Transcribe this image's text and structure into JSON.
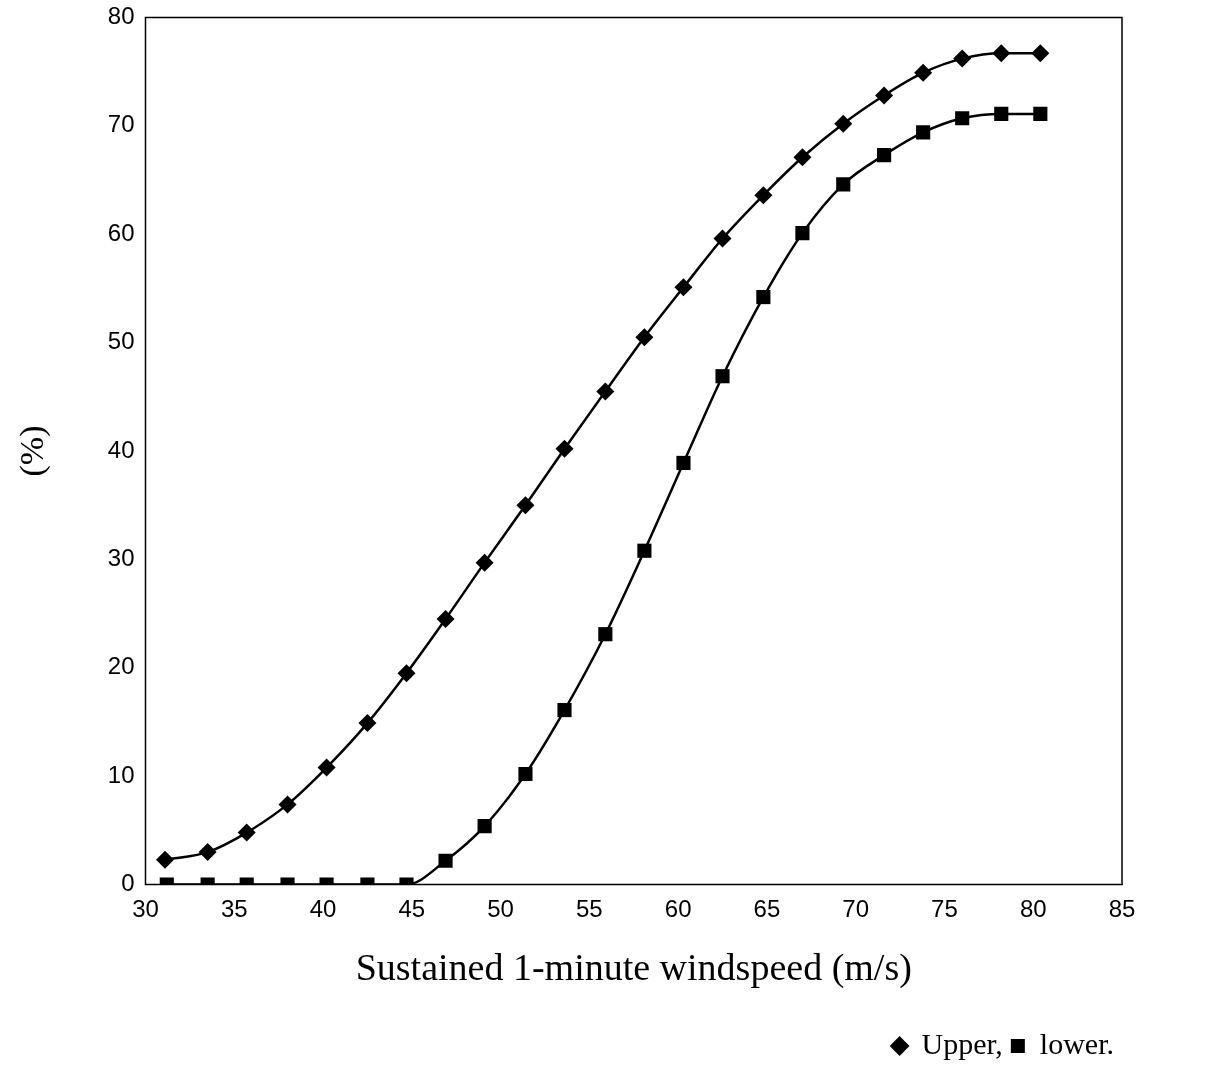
{
  "chart_data": {
    "type": "line",
    "xlabel": "Sustained 1-minute windspeed (m/s)",
    "ylabel": "(%)",
    "xlim": [
      30,
      85
    ],
    "xticks": [
      30,
      35,
      40,
      45,
      50,
      55,
      60,
      65,
      70,
      75,
      80,
      85
    ],
    "ylim": [
      0,
      80
    ],
    "yticks": [
      0,
      10,
      20,
      30,
      40,
      50,
      60,
      70,
      80
    ],
    "legend": "bottom right",
    "line_style": "solid",
    "series": [
      {
        "name": "Upper,",
        "color": "#000000",
        "marker": "diamond",
        "x": [
          31.1,
          33.5,
          35.7,
          38.0,
          40.2,
          42.5,
          44.7,
          46.9,
          49.1,
          51.4,
          53.6,
          55.9,
          58.1,
          60.3,
          62.5,
          64.8,
          67.0,
          69.3,
          71.6,
          73.8,
          76.0,
          78.2,
          80.4
        ],
        "values": [
          2.3,
          3.0,
          4.8,
          7.4,
          10.8,
          14.9,
          19.5,
          24.5,
          29.7,
          35.0,
          40.2,
          45.5,
          50.5,
          55.1,
          59.6,
          63.6,
          67.1,
          70.2,
          72.8,
          74.9,
          76.2,
          76.7,
          76.7
        ]
      },
      {
        "name": "lower.",
        "color": "#000000",
        "marker": "square",
        "x": [
          31.2,
          33.5,
          35.7,
          38.0,
          40.2,
          42.5,
          44.7,
          46.9,
          49.1,
          51.4,
          53.6,
          55.9,
          58.1,
          60.3,
          62.5,
          64.8,
          67.0,
          69.3,
          71.6,
          73.8,
          76.0,
          78.2,
          80.4
        ],
        "values": [
          0,
          0,
          0,
          0,
          0,
          0,
          0,
          2.2,
          5.4,
          10.2,
          16.1,
          23.1,
          30.8,
          38.9,
          46.9,
          54.2,
          60.1,
          64.6,
          67.3,
          69.4,
          70.7,
          71.1,
          71.1
        ]
      }
    ]
  }
}
